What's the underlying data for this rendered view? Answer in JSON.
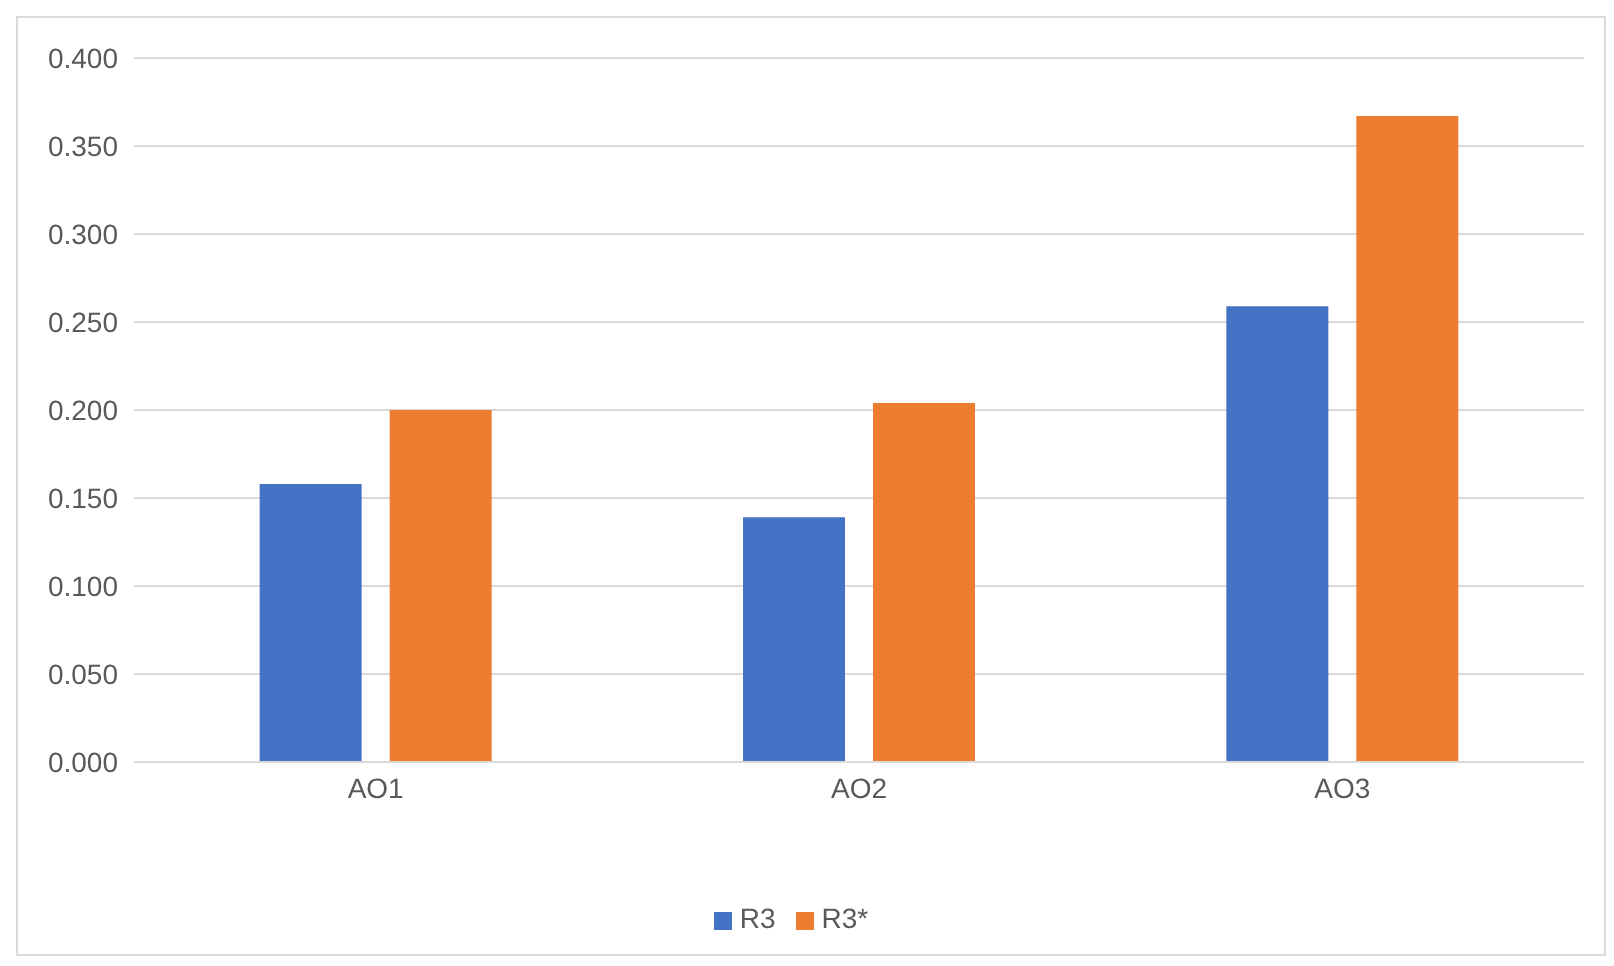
{
  "chart_data": {
    "type": "bar",
    "categories": [
      "AO1",
      "AO2",
      "AO3"
    ],
    "series": [
      {
        "name": "R3",
        "color": "#4472c4",
        "values": [
          0.158,
          0.139,
          0.259
        ]
      },
      {
        "name": "R3*",
        "color": "#ed7d31",
        "values": [
          0.2,
          0.204,
          0.367
        ]
      }
    ],
    "ylim": [
      0,
      0.4
    ],
    "yticks": [
      {
        "value": 0,
        "label": "0.000"
      },
      {
        "value": 0.05,
        "label": "0.050"
      },
      {
        "value": 0.1,
        "label": "0.100"
      },
      {
        "value": 0.15,
        "label": "0.150"
      },
      {
        "value": 0.2,
        "label": "0.200"
      },
      {
        "value": 0.25,
        "label": "0.250"
      },
      {
        "value": 0.3,
        "label": "0.300"
      },
      {
        "value": 0.35,
        "label": "0.350"
      },
      {
        "value": 0.4,
        "label": "0.400"
      }
    ],
    "grid": "y",
    "legend": "bottom"
  }
}
